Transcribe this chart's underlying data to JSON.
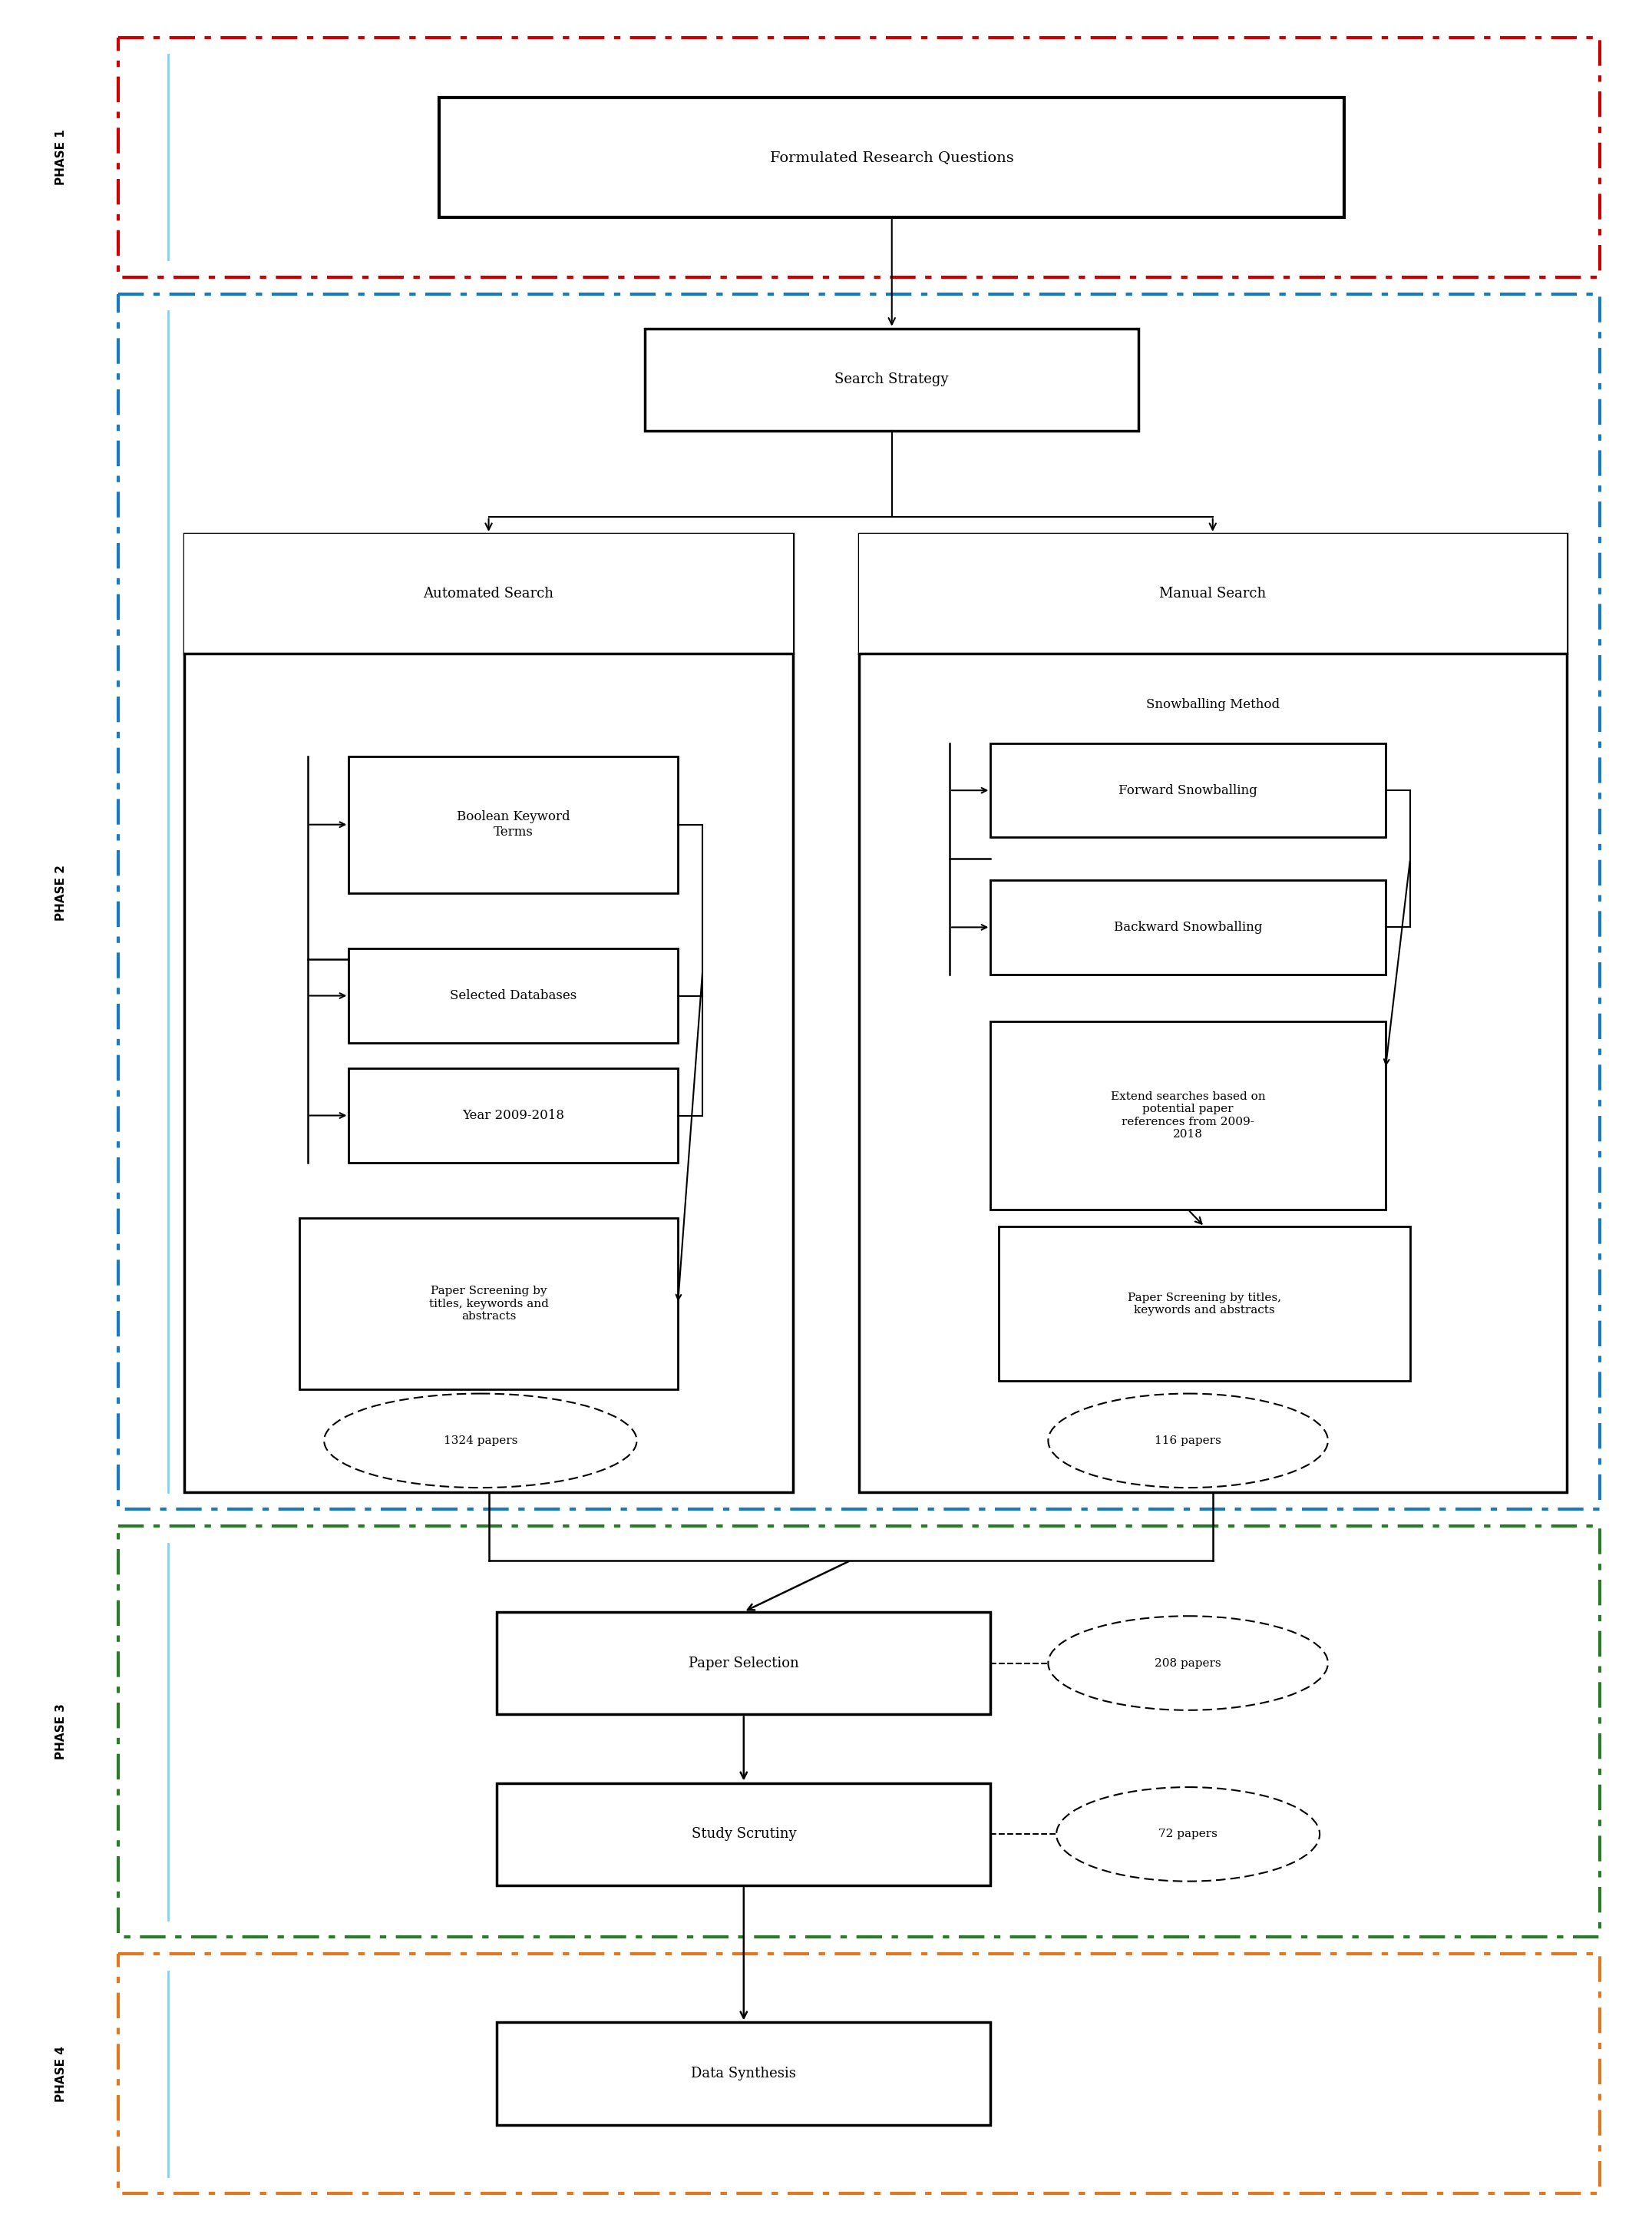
{
  "bg_color": "#ffffff",
  "fig_w": 21.52,
  "fig_h": 29.05,
  "phase1_color": "#cc0000",
  "phase2_color": "#1a7abf",
  "phase3_color": "#2a7a2a",
  "phase4_color": "#e07820",
  "frq_text": "Formulated Research Questions",
  "ss_text": "Search Strategy",
  "auto_text": "Automated Search",
  "manual_text": "Manual Search",
  "snow_label": "Snowballing Method",
  "bk_text": "Boolean Keyword\nTerms",
  "sd_text": "Selected Databases",
  "yr_text": "Year 2009-2018",
  "ps_auto_text": "Paper Screening by\ntitles, keywords and\nabstracts",
  "fs_text": "Forward Snowballing",
  "bs_text": "Backward Snowballing",
  "es_text": "Extend searches based on\npotential paper\nreferences from 2009-\n2018",
  "psm_text": "Paper Screening by titles,\nkeywords and abstracts",
  "e1324_text": "1324 papers",
  "e116_text": "116 papers",
  "psel_text": "Paper Selection",
  "stsc_text": "Study Scrutiny",
  "ds_text": "Data Synthesis",
  "e208_text": "208 papers",
  "e72_text": "72 papers",
  "phase1_label": "PHASE 1",
  "phase2_label": "PHASE 2",
  "phase3_label": "PHASE 3",
  "phase4_label": "PHASE 4"
}
